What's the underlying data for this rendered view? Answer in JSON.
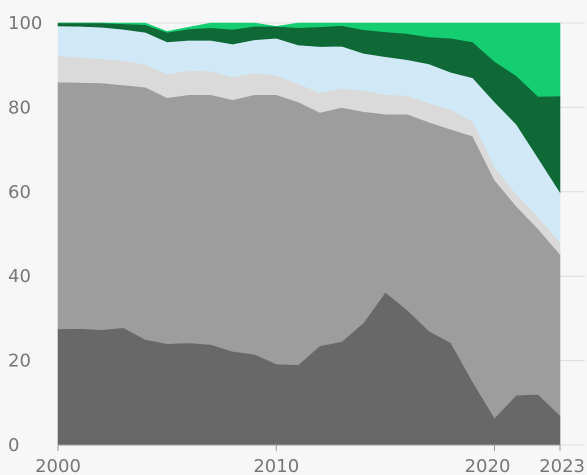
{
  "chart_data": {
    "type": "area",
    "title": "",
    "xlabel": "",
    "ylabel": "",
    "stacked": true,
    "grid": true,
    "xlim": [
      2000,
      2023
    ],
    "ylim": [
      0,
      100
    ],
    "x_ticks": [
      2000,
      2010,
      2020,
      2023
    ],
    "y_ticks": [
      0,
      20,
      40,
      60,
      80,
      100
    ],
    "x": [
      2000,
      2001,
      2002,
      2003,
      2004,
      2005,
      2006,
      2007,
      2008,
      2009,
      2010,
      2011,
      2012,
      2013,
      2014,
      2015,
      2016,
      2017,
      2018,
      2019,
      2020,
      2021,
      2022,
      2023
    ],
    "series": [
      {
        "color": "#686868",
        "values": [
          27.5,
          27.6,
          27.3,
          27.8,
          25,
          24,
          24.2,
          23.8,
          22.2,
          21.5,
          19.2,
          19,
          23.5,
          24.5,
          29,
          36.2,
          32,
          27,
          24.2,
          15,
          6.4,
          11.8,
          12,
          7
        ]
      },
      {
        "color": "#9d9d9d",
        "values": [
          58.5,
          58.3,
          58.5,
          57.5,
          59.8,
          58.3,
          58.8,
          59.2,
          59.6,
          61.5,
          63.8,
          62.3,
          55.3,
          55.5,
          50,
          42.2,
          46.4,
          49.5,
          50.6,
          58.2,
          56.4,
          44.8,
          39.2,
          38.2
        ]
      },
      {
        "color": "#dadada",
        "values": [
          6.2,
          6,
          5.7,
          5.8,
          5.4,
          5.6,
          5.7,
          5.6,
          5.4,
          5.2,
          4.6,
          4.3,
          4.7,
          4.5,
          5,
          4.6,
          4.4,
          4.5,
          4.7,
          3.4,
          3.2,
          2.8,
          2.9,
          2.8
        ]
      },
      {
        "color": "#d1e8f6",
        "values": [
          7.1,
          7.3,
          7.5,
          7.4,
          7.6,
          7.6,
          7.2,
          7.3,
          7.8,
          7.8,
          8.8,
          9.2,
          10.9,
          10,
          8.8,
          9,
          8.5,
          9.3,
          8.8,
          10.4,
          15.3,
          16.6,
          13.9,
          11.9
        ]
      },
      {
        "color": "#0e6937",
        "values": [
          0.7,
          0.8,
          1,
          1.3,
          1.8,
          2.3,
          2.7,
          3,
          3.5,
          3.2,
          2.8,
          4.1,
          4.7,
          4.9,
          5.6,
          5.9,
          6.2,
          6.4,
          8.1,
          8.5,
          9.6,
          11.5,
          14.6,
          22.8
        ]
      },
      {
        "color": "#16ce72",
        "values": [
          0,
          0,
          0,
          0.2,
          0.4,
          0.2,
          0.4,
          1.1,
          1.5,
          0.8,
          0,
          1.1,
          0.9,
          0.6,
          1.6,
          2.1,
          2.5,
          3.3,
          3.6,
          4.5,
          9.1,
          12.5,
          17.4,
          17.3
        ]
      }
    ]
  }
}
